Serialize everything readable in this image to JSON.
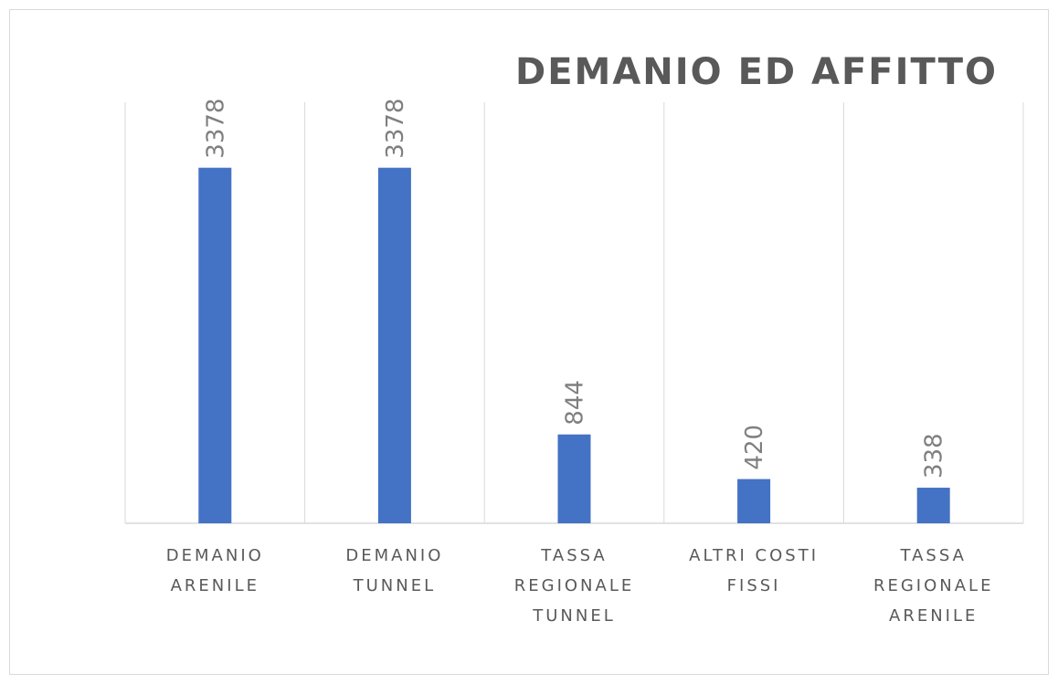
{
  "chart_data": {
    "type": "bar",
    "title": "DEMANIO ED AFFITTO",
    "categories": [
      "DEMANIO ARENILE",
      "DEMANIO TUNNEL",
      "TASSA REGIONALE TUNNEL",
      "ALTRI COSTI FISSI",
      "TASSA REGIONALE ARENILE"
    ],
    "values": [
      3378,
      3378,
      844,
      420,
      338
    ],
    "color": "#4472c4",
    "ylim": [
      0,
      4000
    ]
  }
}
